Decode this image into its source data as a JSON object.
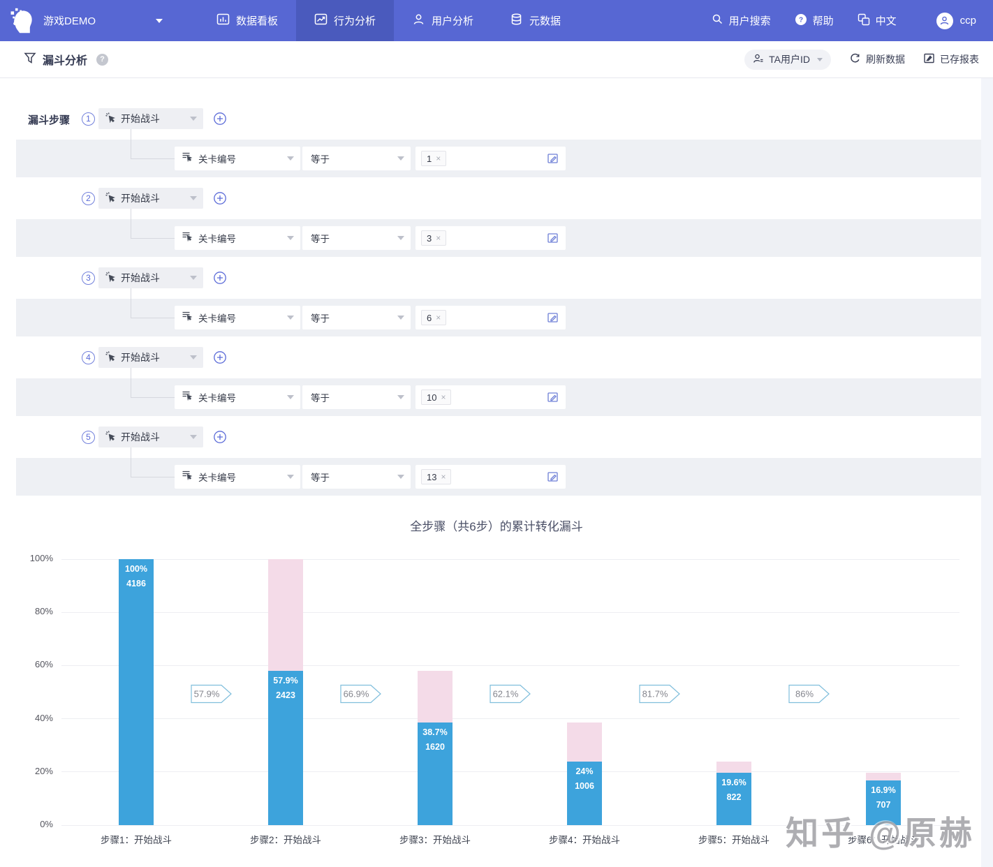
{
  "nav": {
    "project_label": "游戏DEMO",
    "items": [
      {
        "label": "数据看板",
        "active": false
      },
      {
        "label": "行为分析",
        "active": true
      },
      {
        "label": "用户分析",
        "active": false
      },
      {
        "label": "元数据",
        "active": false
      }
    ],
    "search_label": "用户搜索",
    "help_label": "帮助",
    "lang_label": "中文",
    "username": "ccp",
    "colors": {
      "bg": "#5767D3",
      "active_bg": "#4A5ABD"
    }
  },
  "toolbar": {
    "title": "漏斗分析",
    "user_id_selector": "TA用户ID",
    "refresh_label": "刷新数据",
    "saved_reports_label": "已存报表"
  },
  "funnel": {
    "section_label": "漏斗步骤",
    "steps": [
      {
        "num": "1",
        "event": "开始战斗",
        "condition": {
          "field": "关卡编号",
          "operator": "等于",
          "value": "1"
        }
      },
      {
        "num": "2",
        "event": "开始战斗",
        "condition": {
          "field": "关卡编号",
          "operator": "等于",
          "value": "3"
        }
      },
      {
        "num": "3",
        "event": "开始战斗",
        "condition": {
          "field": "关卡编号",
          "operator": "等于",
          "value": "6"
        }
      },
      {
        "num": "4",
        "event": "开始战斗",
        "condition": {
          "field": "关卡编号",
          "operator": "等于",
          "value": "10"
        }
      },
      {
        "num": "5",
        "event": "开始战斗",
        "condition": {
          "field": "关卡编号",
          "operator": "等于",
          "value": "13"
        }
      }
    ]
  },
  "chart_data": {
    "type": "bar",
    "title": "全步骤（共6步）的累计转化漏斗",
    "categories": [
      "步骤1：开始战斗",
      "步骤2：开始战斗",
      "步骤3：开始战斗",
      "步骤4：开始战斗",
      "步骤5：开始战斗",
      "步骤6：开始战斗"
    ],
    "bars": [
      {
        "pct": 100,
        "pct_label": "100%",
        "count": 4186
      },
      {
        "pct": 57.9,
        "pct_label": "57.9%",
        "count": 2423
      },
      {
        "pct": 38.7,
        "pct_label": "38.7%",
        "count": 1620
      },
      {
        "pct": 24,
        "pct_label": "24%",
        "count": 1006
      },
      {
        "pct": 19.6,
        "pct_label": "19.6%",
        "count": 822
      },
      {
        "pct": 16.9,
        "pct_label": "16.9%",
        "count": 707
      }
    ],
    "step_conversion_labels": [
      "57.9%",
      "66.9%",
      "62.1%",
      "81.7%",
      "86%"
    ],
    "yticks": [
      {
        "label": "100%",
        "value": 100
      },
      {
        "label": "80%",
        "value": 80
      },
      {
        "label": "60%",
        "value": 60
      },
      {
        "label": "40%",
        "value": 40
      },
      {
        "label": "20%",
        "value": 20
      },
      {
        "label": "0%",
        "value": 0
      }
    ],
    "ylim": [
      0,
      100
    ],
    "grid": true,
    "legend": "none",
    "colors": {
      "converted": "#3DA3DC",
      "lost": "#F4DBE8",
      "badge_border": "#7FBEDC",
      "badge_text": "#84858D"
    }
  },
  "watermark": "知乎 @原赫"
}
